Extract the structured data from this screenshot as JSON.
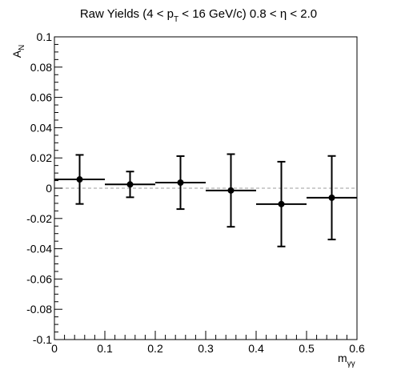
{
  "chart_data": {
    "type": "scatter",
    "title_parts": {
      "main": "Raw Yields (4 < p",
      "sub1": "T",
      "rest": " < 16 GeV/c) 0.8 < η < 2.0"
    },
    "ylabel_parts": {
      "main": "A",
      "sub": "N"
    },
    "xlabel_parts": {
      "main": "m",
      "sub": "γγ"
    },
    "xlim": [
      0,
      0.6
    ],
    "ylim": [
      -0.1,
      0.1
    ],
    "x_ticks": [
      "0",
      "0.1",
      "0.2",
      "0.3",
      "0.4",
      "0.5",
      "0.6"
    ],
    "y_ticks": [
      "0.1",
      "0.08",
      "0.06",
      "0.04",
      "0.02",
      "0",
      "-0.02",
      "-0.04",
      "-0.06",
      "-0.08",
      "-0.1"
    ],
    "zero_line": true,
    "grid": false,
    "legend": "none",
    "points": [
      {
        "x": 0.05,
        "xerr": 0.05,
        "y": 0.0058,
        "yerr": 0.0162
      },
      {
        "x": 0.15,
        "xerr": 0.05,
        "y": 0.0025,
        "yerr": 0.0085
      },
      {
        "x": 0.25,
        "xerr": 0.05,
        "y": 0.0037,
        "yerr": 0.0175
      },
      {
        "x": 0.35,
        "xerr": 0.05,
        "y": -0.0015,
        "yerr": 0.024
      },
      {
        "x": 0.45,
        "xerr": 0.05,
        "y": -0.0105,
        "yerr": 0.028
      },
      {
        "x": 0.55,
        "xerr": 0.05,
        "y": -0.0063,
        "yerr": 0.0276
      }
    ],
    "colors": {
      "marker": "#000000",
      "zero_line": "#b0b0b0",
      "axis": "#000000"
    }
  }
}
